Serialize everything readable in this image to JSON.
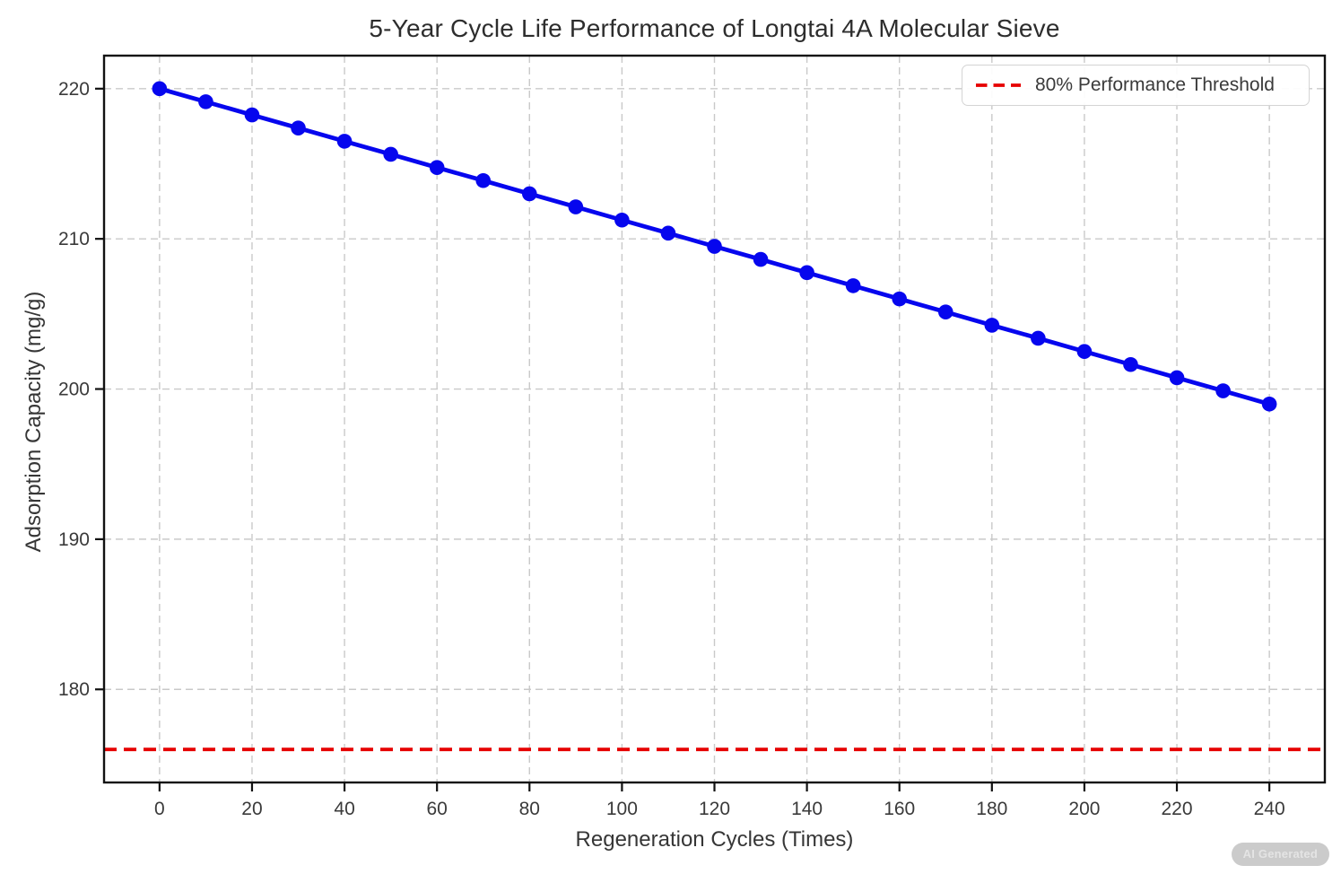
{
  "figure": {
    "badge": "AI Generated"
  },
  "chart_data": {
    "type": "line",
    "title": "5-Year Cycle Life Performance of Longtai 4A Molecular Sieve",
    "xlabel": "Regeneration Cycles (Times)",
    "ylabel": "Adsorption Capacity (mg/g)",
    "xlim": [
      -12,
      252
    ],
    "ylim": [
      173.8,
      222.2
    ],
    "xticks": [
      0,
      20,
      40,
      60,
      80,
      100,
      120,
      140,
      160,
      180,
      200,
      220,
      240
    ],
    "yticks": [
      180,
      190,
      200,
      210,
      220
    ],
    "grid": true,
    "legend_position": "upper right",
    "series": [
      {
        "color": "#0606ee",
        "marker": "circle",
        "x": [
          0,
          10,
          20,
          30,
          40,
          50,
          60,
          70,
          80,
          90,
          100,
          110,
          120,
          130,
          140,
          150,
          160,
          170,
          180,
          190,
          200,
          210,
          220,
          230,
          240
        ],
        "y": [
          220.0,
          219.13,
          218.25,
          217.38,
          216.5,
          215.63,
          214.75,
          213.88,
          213.0,
          212.13,
          211.25,
          210.38,
          209.5,
          208.63,
          207.75,
          206.88,
          206.0,
          205.13,
          204.25,
          203.38,
          202.5,
          201.63,
          200.75,
          199.88,
          199.0
        ]
      }
    ],
    "threshold": {
      "label": "80% Performance Threshold",
      "value": 176,
      "color": "#e60000",
      "linestyle": "dashed"
    },
    "legend": [
      {
        "label": "80% Performance Threshold",
        "color": "#e60000",
        "linestyle": "dashed"
      }
    ]
  }
}
